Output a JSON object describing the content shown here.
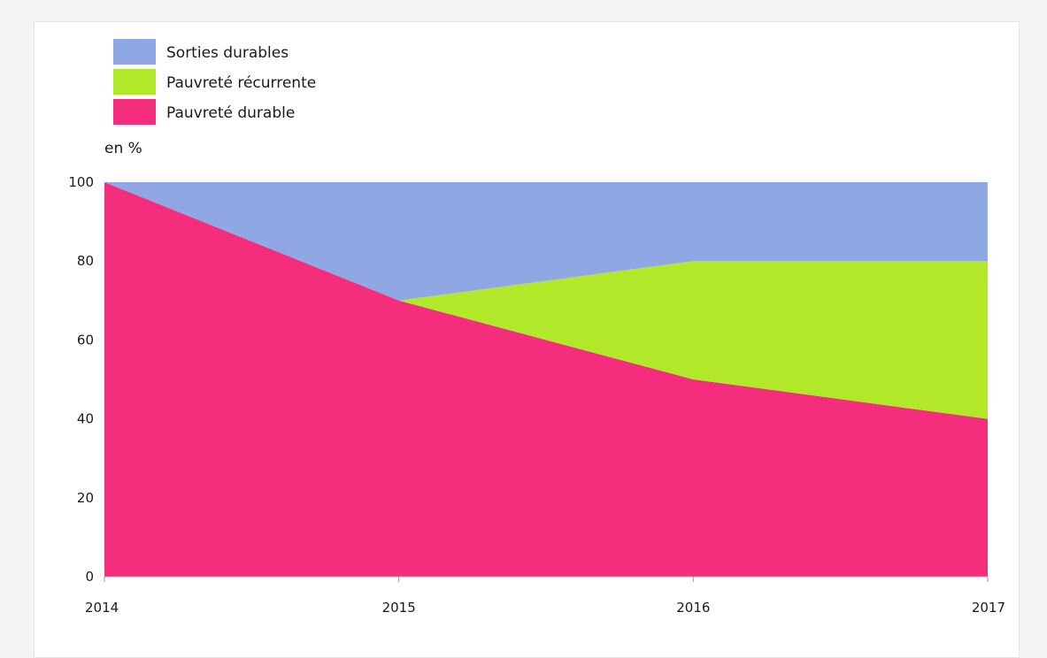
{
  "chart_data": {
    "type": "area",
    "stacked": true,
    "x": [
      "2014",
      "2015",
      "2016",
      "2017"
    ],
    "series": [
      {
        "name": "Pauvreté durable",
        "values": [
          100,
          70,
          50,
          40
        ],
        "color": "#f42d7d"
      },
      {
        "name": "Pauvreté récurrente",
        "values": [
          0,
          0,
          30,
          40
        ],
        "color": "#b1e82a"
      },
      {
        "name": "Sorties durables",
        "values": [
          0,
          30,
          20,
          20
        ],
        "color": "#8fa8e4"
      }
    ],
    "legend_order": [
      "Sorties durables",
      "Pauvreté récurrente",
      "Pauvreté durable"
    ],
    "legend_position": "top-left",
    "ylabel": "en %",
    "ylim": [
      0,
      100
    ],
    "yticks": [
      0,
      20,
      40,
      60,
      80,
      100
    ],
    "grid": false
  }
}
